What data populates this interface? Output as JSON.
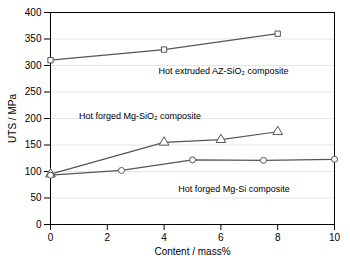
{
  "chart_data": {
    "type": "line",
    "xlabel": "Content / mass%",
    "ylabel": "UTS / MPa",
    "xlim": [
      0,
      10
    ],
    "ylim": [
      0,
      400
    ],
    "xticks": [
      0,
      2,
      4,
      6,
      8,
      10
    ],
    "yticks": [
      0,
      50,
      100,
      150,
      200,
      250,
      300,
      350,
      400
    ],
    "grid": "y",
    "series": [
      {
        "x": [
          0,
          4,
          8
        ],
        "values": [
          310,
          330,
          360
        ],
        "color": "#555555",
        "marker": "square"
      },
      {
        "x": [
          0,
          4,
          6,
          8
        ],
        "values": [
          95,
          155,
          160,
          175
        ],
        "color": "#555555",
        "marker": "triangle"
      },
      {
        "x": [
          0,
          2.5,
          5,
          7.5,
          10
        ],
        "values": [
          93,
          102,
          122,
          121,
          123
        ],
        "color": "#555555",
        "marker": "circle"
      }
    ],
    "annotations": [
      {
        "text": "Hot extruded AZ-SiO₂ composite",
        "xy": [
          8,
          360
        ],
        "xytext": [
          3.8,
          290
        ]
      },
      {
        "text": "Hot forged Mg-SiO₂ composite",
        "xy": [
          4.05,
          155
        ],
        "xytext": [
          1.0,
          205
        ]
      },
      {
        "text": "Hot forged Mg-Si composite",
        "xy": [
          5,
          122
        ],
        "xytext": [
          4.5,
          67
        ]
      }
    ]
  }
}
